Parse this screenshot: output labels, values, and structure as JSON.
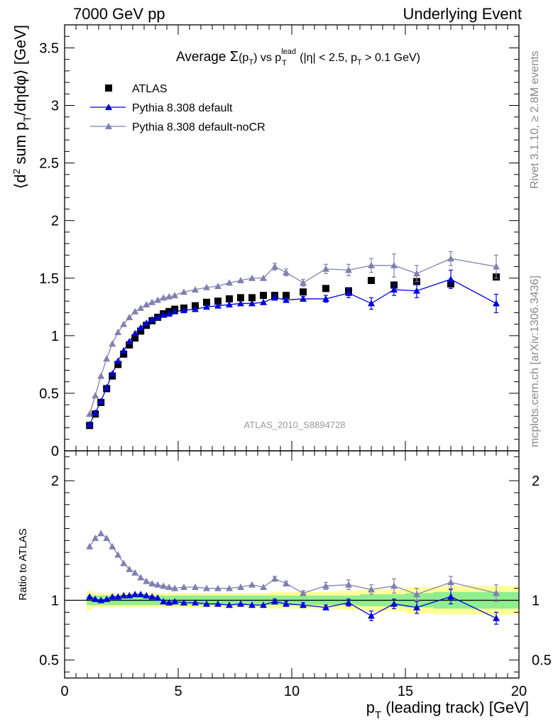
{
  "header": {
    "left": "7000 GeV pp",
    "right": "Underlying Event"
  },
  "side": {
    "rivet": "Rivet 3.1.10, ≥ 2.8M events",
    "mcplots": "mcplots.cern.ch [arXiv:1306.3436]"
  },
  "colors": {
    "atlas": "#000000",
    "default": "#0000dd",
    "noCR": "#8080b0",
    "band_inner": "#90ee90",
    "band_outer": "#ffff99"
  },
  "chart_data": [
    {
      "panel": "main",
      "type": "scatter",
      "title": "Average Σ(pT) vs pT^lead (|η| < 2.5, pT > 0.1 GeV)",
      "xlabel": "pT (leading track) [GeV]",
      "ylabel": "⟨d² sum pT/dηdφ⟩ [GeV]",
      "xlim": [
        0,
        20
      ],
      "ylim": [
        0,
        3.7
      ],
      "yticks": [
        "0",
        "0.5",
        "1",
        "1.5",
        "2",
        "2.5",
        "3",
        "3.5"
      ],
      "watermark": "ATLAS_2010_S8894728",
      "legend_position": "top-left",
      "x": [
        1.1,
        1.35,
        1.6,
        1.85,
        2.1,
        2.35,
        2.6,
        2.85,
        3.1,
        3.35,
        3.6,
        3.85,
        4.1,
        4.35,
        4.6,
        4.85,
        5.25,
        5.75,
        6.25,
        6.75,
        7.25,
        7.75,
        8.25,
        8.75,
        9.25,
        9.75,
        10.5,
        11.5,
        12.5,
        13.5,
        14.5,
        15.5,
        17,
        19
      ],
      "series": [
        {
          "name": "ATLAS",
          "marker": "square",
          "values": [
            0.22,
            0.32,
            0.42,
            0.54,
            0.65,
            0.75,
            0.84,
            0.92,
            0.98,
            1.04,
            1.09,
            1.13,
            1.16,
            1.19,
            1.21,
            1.23,
            1.24,
            1.26,
            1.29,
            1.3,
            1.32,
            1.33,
            1.33,
            1.35,
            1.35,
            1.35,
            1.38,
            1.41,
            1.39,
            1.48,
            1.44,
            1.47,
            1.45,
            1.51
          ]
        },
        {
          "name": "Pythia 8.308 default",
          "marker": "triangle",
          "values": [
            0.23,
            0.33,
            0.43,
            0.55,
            0.67,
            0.78,
            0.87,
            0.95,
            1.02,
            1.07,
            1.11,
            1.14,
            1.16,
            1.18,
            1.19,
            1.21,
            1.22,
            1.23,
            1.25,
            1.26,
            1.27,
            1.28,
            1.28,
            1.29,
            1.33,
            1.31,
            1.32,
            1.32,
            1.37,
            1.28,
            1.4,
            1.39,
            1.49,
            1.28
          ],
          "errors": [
            0,
            0,
            0,
            0,
            0,
            0,
            0,
            0,
            0,
            0,
            0,
            0,
            0,
            0,
            0,
            0,
            0,
            0,
            0,
            0,
            0,
            0,
            0,
            0,
            0.02,
            0.02,
            0.02,
            0.03,
            0.04,
            0.05,
            0.05,
            0.06,
            0.08,
            0.08
          ]
        },
        {
          "name": "Pythia 8.308 default-noCR",
          "marker": "triangle",
          "values": [
            0.32,
            0.48,
            0.65,
            0.8,
            0.93,
            1.03,
            1.1,
            1.16,
            1.21,
            1.24,
            1.27,
            1.29,
            1.31,
            1.33,
            1.34,
            1.35,
            1.38,
            1.4,
            1.42,
            1.43,
            1.46,
            1.48,
            1.5,
            1.5,
            1.6,
            1.55,
            1.46,
            1.58,
            1.57,
            1.61,
            1.61,
            1.54,
            1.67,
            1.6
          ],
          "errors": [
            0,
            0,
            0,
            0,
            0,
            0,
            0,
            0,
            0,
            0,
            0,
            0,
            0,
            0,
            0,
            0,
            0,
            0,
            0,
            0,
            0,
            0,
            0,
            0,
            0.03,
            0.03,
            0.03,
            0.04,
            0.05,
            0.06,
            0.1,
            0.07,
            0.06,
            0.1
          ]
        }
      ]
    },
    {
      "panel": "ratio",
      "type": "scatter",
      "ylabel": "Ratio to ATLAS",
      "xlim": [
        0,
        20
      ],
      "ylim": [
        0.35,
        2.25
      ],
      "yticks": [
        "0.5",
        "1",
        "2"
      ],
      "xticks": [
        "0",
        "5",
        "10",
        "15",
        "20"
      ],
      "x": [
        1.1,
        1.35,
        1.6,
        1.85,
        2.1,
        2.35,
        2.6,
        2.85,
        3.1,
        3.35,
        3.6,
        3.85,
        4.1,
        4.35,
        4.6,
        4.85,
        5.25,
        5.75,
        6.25,
        6.75,
        7.25,
        7.75,
        8.25,
        8.75,
        9.25,
        9.75,
        10.5,
        11.5,
        12.5,
        13.5,
        14.5,
        15.5,
        17,
        19
      ],
      "band_inner": [
        0.04,
        0.04,
        0.04,
        0.04,
        0.04,
        0.04,
        0.04,
        0.04,
        0.04,
        0.04,
        0.04,
        0.04,
        0.04,
        0.04,
        0.04,
        0.04,
        0.04,
        0.04,
        0.04,
        0.04,
        0.04,
        0.04,
        0.04,
        0.04,
        0.04,
        0.04,
        0.04,
        0.04,
        0.04,
        0.05,
        0.05,
        0.06,
        0.07,
        0.07
      ],
      "band_outer": [
        0.08,
        0.06,
        0.06,
        0.06,
        0.06,
        0.06,
        0.06,
        0.06,
        0.06,
        0.06,
        0.06,
        0.06,
        0.06,
        0.06,
        0.06,
        0.06,
        0.06,
        0.06,
        0.06,
        0.06,
        0.06,
        0.06,
        0.06,
        0.06,
        0.07,
        0.07,
        0.07,
        0.07,
        0.08,
        0.09,
        0.09,
        0.11,
        0.12,
        0.12
      ],
      "series": [
        {
          "name": "Pythia 8.308 default",
          "values": [
            1.03,
            1.01,
            1.0,
            1.01,
            1.03,
            1.03,
            1.04,
            1.04,
            1.05,
            1.05,
            1.04,
            1.03,
            1.02,
            0.99,
            0.98,
            0.99,
            0.98,
            0.98,
            0.97,
            0.97,
            0.96,
            0.97,
            0.96,
            0.96,
            0.99,
            0.97,
            0.96,
            0.94,
            0.98,
            0.87,
            0.97,
            0.94,
            1.03,
            0.85
          ],
          "errors": [
            0,
            0,
            0,
            0,
            0,
            0,
            0,
            0,
            0,
            0,
            0,
            0,
            0,
            0,
            0,
            0,
            0,
            0,
            0,
            0,
            0,
            0,
            0,
            0,
            0.02,
            0.02,
            0.02,
            0.02,
            0.03,
            0.04,
            0.04,
            0.05,
            0.06,
            0.05
          ]
        },
        {
          "name": "Pythia 8.308 default-noCR",
          "values": [
            1.45,
            1.52,
            1.56,
            1.52,
            1.45,
            1.38,
            1.31,
            1.26,
            1.23,
            1.19,
            1.16,
            1.14,
            1.13,
            1.12,
            1.11,
            1.1,
            1.11,
            1.11,
            1.1,
            1.1,
            1.1,
            1.11,
            1.13,
            1.11,
            1.18,
            1.14,
            1.06,
            1.12,
            1.13,
            1.09,
            1.12,
            1.05,
            1.15,
            1.06
          ],
          "errors": [
            0,
            0,
            0,
            0,
            0,
            0,
            0,
            0,
            0,
            0,
            0,
            0,
            0,
            0,
            0,
            0,
            0,
            0,
            0,
            0,
            0,
            0,
            0,
            0,
            0.02,
            0.02,
            0.02,
            0.03,
            0.04,
            0.04,
            0.06,
            0.05,
            0.05,
            0.07
          ]
        }
      ]
    }
  ]
}
